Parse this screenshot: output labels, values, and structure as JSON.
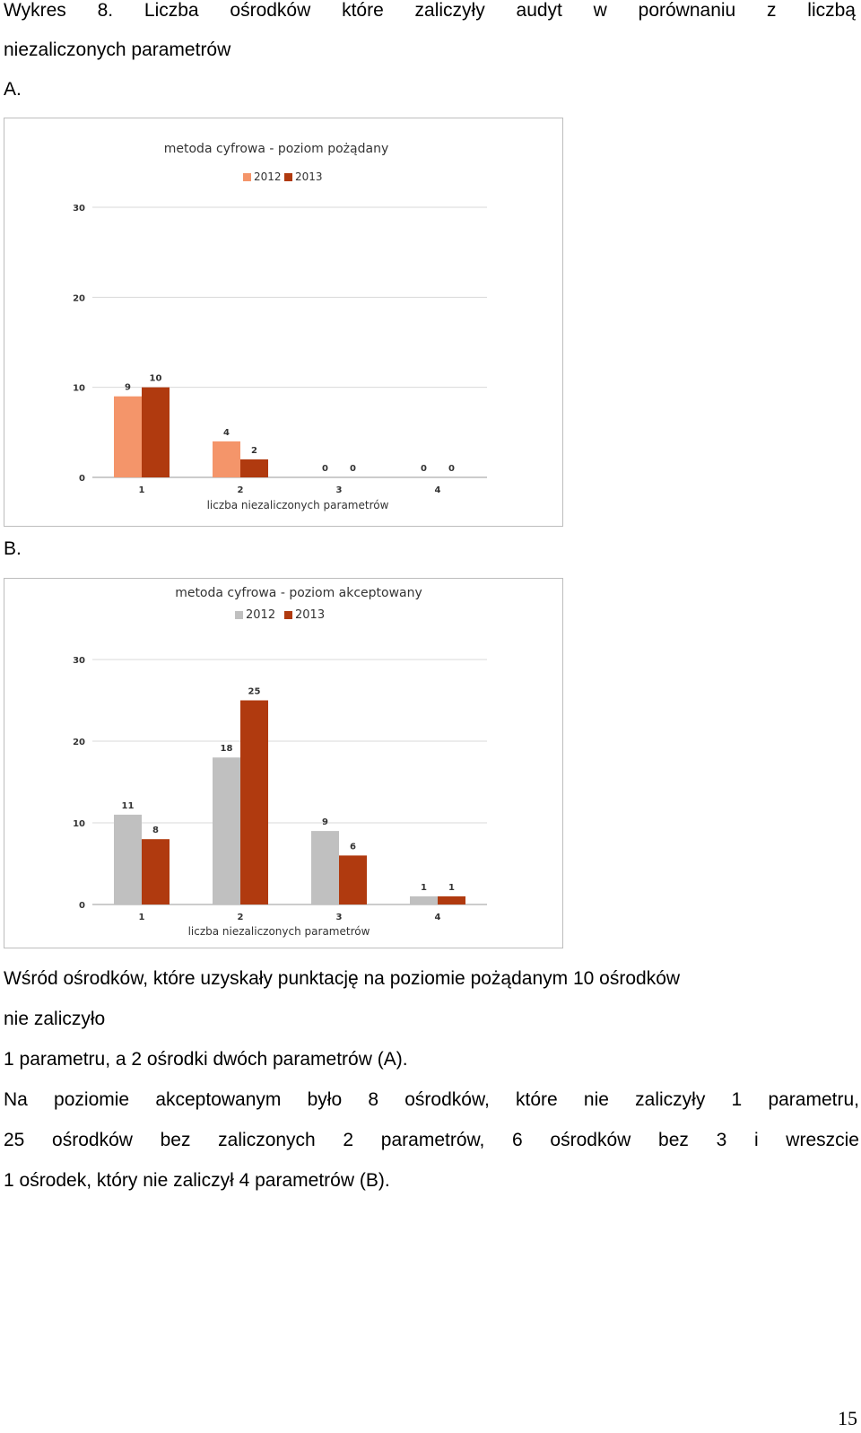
{
  "header": {
    "line1": "Wykres 8. Liczba ośrodków które zaliczyły audyt w porównaniu z liczbą",
    "line2": "niezaliczonych parametrów"
  },
  "sections": {
    "a_label": "A.",
    "b_label": "B."
  },
  "chart_data": [
    {
      "type": "bar",
      "title": "metoda cyfrowa - poziom pożądany",
      "xlabel": "liczba niezaliczonych parametrów",
      "ylabel": "",
      "categories": [
        "1",
        "2",
        "3",
        "4"
      ],
      "series": [
        {
          "name": "2012",
          "values": [
            9,
            4,
            0,
            0
          ],
          "color": "#f4956a"
        },
        {
          "name": "2013",
          "values": [
            10,
            2,
            0,
            0
          ],
          "color": "#b03a0f"
        }
      ],
      "yticks": [
        "0",
        "10",
        "20",
        "30"
      ],
      "ylim": [
        0,
        30
      ],
      "grid": true,
      "legend": "top"
    },
    {
      "type": "bar",
      "title": "metoda cyfrowa - poziom akceptowany",
      "xlabel": "liczba niezaliczonych parametrów",
      "ylabel": "",
      "categories": [
        "1",
        "2",
        "3",
        "4"
      ],
      "series": [
        {
          "name": "2012",
          "values": [
            11,
            18,
            9,
            1
          ],
          "color": "#c0c0c0"
        },
        {
          "name": "2013",
          "values": [
            8,
            25,
            6,
            1
          ],
          "color": "#b03a0f"
        }
      ],
      "yticks": [
        "0",
        "10",
        "20",
        "30"
      ],
      "ylim": [
        0,
        30
      ],
      "grid": true,
      "legend": "top"
    }
  ],
  "paragraph1": {
    "line1": "Wśród ośrodków, które uzyskały punktację na poziomie pożądanym 10 ośrodków",
    "line2": "nie zaliczyło",
    "line3": "1 parametru, a 2 ośrodki dwóch parametrów (A)."
  },
  "paragraph2": {
    "line1": "Na poziomie akceptowanym było 8 ośrodków, które nie zaliczyły 1 parametru,",
    "line2": "25 ośrodków bez zaliczonych 2 parametrów, 6 ośrodków bez 3 i wreszcie",
    "line3": "1 ośrodek, który nie zaliczył 4 parametrów (B)."
  },
  "page_number": "15"
}
